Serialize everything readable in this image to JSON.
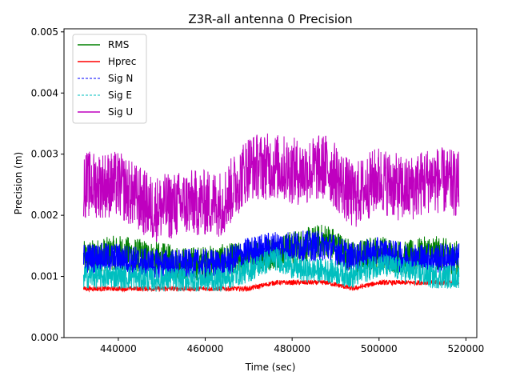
{
  "chart_data": {
    "type": "line",
    "title": "Z3R-all antenna 0 Precision",
    "xlabel": "Time (sec)",
    "ylabel": "Precision (m)",
    "xlim": [
      427500,
      522500
    ],
    "ylim": [
      0,
      0.00505
    ],
    "x_ticks": [
      440000,
      460000,
      480000,
      500000,
      520000
    ],
    "x_tick_labels": [
      "440000",
      "460000",
      "480000",
      "500000",
      "520000"
    ],
    "y_ticks": [
      0,
      0.001,
      0.002,
      0.003,
      0.004,
      0.005
    ],
    "y_tick_labels": [
      "0.000",
      "0.001",
      "0.002",
      "0.003",
      "0.004",
      "0.005"
    ],
    "grid": false,
    "legend_position": "top-left",
    "x_range": [
      432000,
      518400
    ],
    "series": [
      {
        "name": "RMS",
        "color": "#008000",
        "style": "solid",
        "x": [
          432000,
          440000,
          448000,
          456000,
          464000,
          470000,
          476000,
          482000,
          488000,
          494000,
          500000,
          506000,
          512000,
          518400
        ],
        "y": [
          0.0013,
          0.0014,
          0.0013,
          0.0012,
          0.00125,
          0.0013,
          0.0014,
          0.0015,
          0.0016,
          0.0013,
          0.0014,
          0.0013,
          0.0014,
          0.0013
        ]
      },
      {
        "name": "Hprec",
        "color": "#ff0000",
        "style": "solid",
        "x": [
          432000,
          440000,
          448000,
          456000,
          464000,
          470000,
          476000,
          482000,
          488000,
          494000,
          500000,
          506000,
          512000,
          518400
        ],
        "y": [
          0.0008,
          0.0008,
          0.0008,
          0.0008,
          0.0008,
          0.0008,
          0.0009,
          0.0009,
          0.0009,
          0.0008,
          0.0009,
          0.0009,
          0.0009,
          0.0009
        ]
      },
      {
        "name": "Sig N",
        "color": "#0000ff",
        "style": "dashed",
        "x": [
          432000,
          440000,
          448000,
          456000,
          464000,
          470000,
          476000,
          482000,
          488000,
          494000,
          500000,
          506000,
          512000,
          518400
        ],
        "y": [
          0.0013,
          0.0013,
          0.0012,
          0.0012,
          0.0012,
          0.0014,
          0.0015,
          0.0015,
          0.0015,
          0.0013,
          0.0014,
          0.0013,
          0.0013,
          0.0013
        ]
      },
      {
        "name": "Sig E",
        "color": "#00bfbf",
        "style": "dashed",
        "x": [
          432000,
          440000,
          448000,
          456000,
          464000,
          470000,
          476000,
          482000,
          488000,
          494000,
          500000,
          506000,
          512000,
          518400
        ],
        "y": [
          0.001,
          0.001,
          0.00095,
          0.00095,
          0.00095,
          0.0011,
          0.0013,
          0.0011,
          0.0011,
          0.001,
          0.0012,
          0.0011,
          0.001,
          0.001
        ]
      },
      {
        "name": "Sig U",
        "color": "#bf00bf",
        "style": "solid",
        "x": [
          432000,
          440000,
          448000,
          456000,
          464000,
          470000,
          476000,
          482000,
          488000,
          494000,
          500000,
          506000,
          512000,
          518400
        ],
        "y": [
          0.0025,
          0.0025,
          0.0021,
          0.0022,
          0.0022,
          0.0028,
          0.0028,
          0.0027,
          0.0028,
          0.0023,
          0.0026,
          0.0024,
          0.0026,
          0.0025
        ]
      }
    ]
  }
}
